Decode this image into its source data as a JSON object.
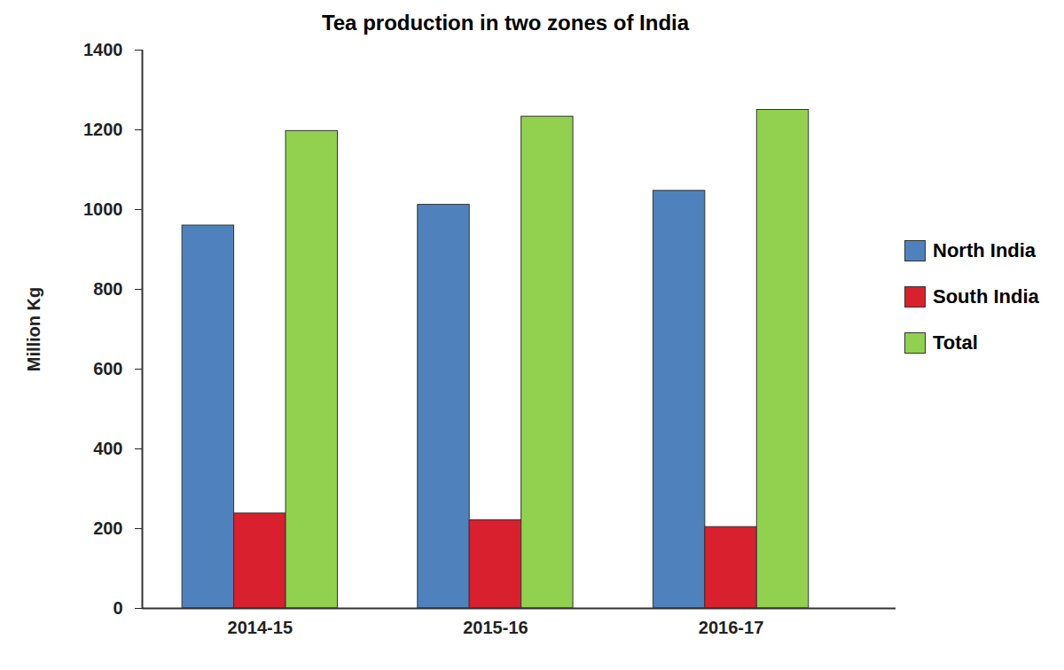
{
  "chart_data": {
    "type": "bar",
    "title": "Tea production in two zones of India",
    "y_label": "Million Kg",
    "categories": [
      "2014-15",
      "2015-16",
      "2016-17"
    ],
    "series": [
      {
        "name": "North India",
        "color": "#4f81bd",
        "values": [
          960,
          1012,
          1047
        ]
      },
      {
        "name": "South India",
        "color": "#d9202f",
        "values": [
          238,
          221,
          204
        ]
      },
      {
        "name": "Total",
        "color": "#92d050",
        "values": [
          1197,
          1233,
          1250
        ]
      }
    ],
    "ylim": [
      0,
      1400
    ],
    "yticks": [
      0,
      200,
      400,
      600,
      800,
      1000,
      1200,
      1400
    ],
    "grid": false,
    "legend": "right"
  }
}
